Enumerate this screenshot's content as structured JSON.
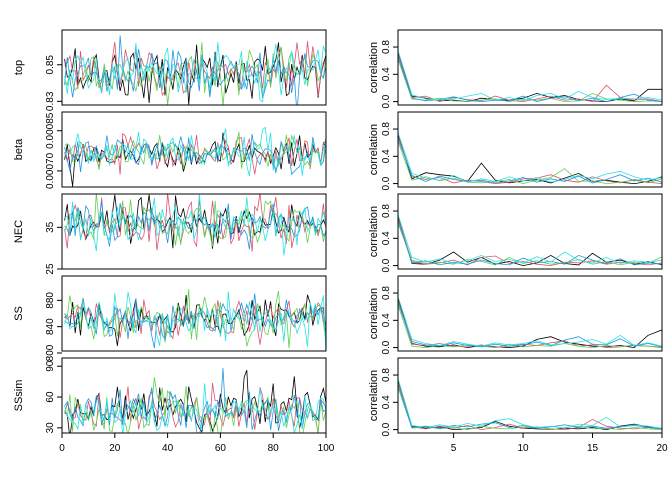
{
  "palette": [
    "#000000",
    "#DF536B",
    "#61D04F",
    "#2297E6",
    "#28E2E5"
  ],
  "chart_data": [
    {
      "type": "line",
      "panel": "trace",
      "ylabel": "top",
      "xlim": [
        0,
        100
      ],
      "ylim": [
        0.828,
        0.869
      ],
      "yticks": [
        0.83,
        0.85
      ],
      "ytick_labels": [
        "0.83",
        "0.85"
      ],
      "xticks": [
        0,
        20,
        40,
        60,
        80,
        100
      ],
      "xtick_labels": [
        "0",
        "20",
        "40",
        "60",
        "80",
        "100"
      ],
      "show_xticks": false,
      "n_series": 5,
      "x_range": [
        1,
        100
      ],
      "center": 0.846,
      "spread": 0.0075,
      "rho": 0.1
    },
    {
      "type": "line",
      "panel": "acf",
      "ylabel": "correlation",
      "xlim": [
        1,
        20
      ],
      "ylim": [
        -0.05,
        1.05
      ],
      "yticks": [
        0.0,
        0.4,
        0.8
      ],
      "ytick_labels": [
        "0.0",
        "0.4",
        "0.8"
      ],
      "xticks": [
        5,
        10,
        15,
        20
      ],
      "xtick_labels": [
        "5",
        "10",
        "15",
        "20"
      ],
      "show_xticks": false,
      "series": [
        {
          "values": [
            0.72,
            0.08,
            0.05,
            0.01,
            0.02,
            0.0,
            0.05,
            0.03,
            0.02,
            0.05,
            0.12,
            0.06,
            0.09,
            0.03,
            0.01,
            0.0,
            0.04,
            0.01,
            0.18,
            0.18
          ]
        },
        {
          "values": [
            0.7,
            0.06,
            0.08,
            0.0,
            0.06,
            0.03,
            0.01,
            0.08,
            0.02,
            0.0,
            0.04,
            0.08,
            0.02,
            0.04,
            0.0,
            0.24,
            0.06,
            0.02,
            0.04,
            0.0
          ]
        },
        {
          "values": [
            0.62,
            0.04,
            0.02,
            0.05,
            0.01,
            0.0,
            0.02,
            0.04,
            0.0,
            0.03,
            0.02,
            0.05,
            0.0,
            0.01,
            0.12,
            0.04,
            0.02,
            0.0,
            0.01,
            0.0
          ]
        },
        {
          "values": [
            0.66,
            0.05,
            0.01,
            0.03,
            0.07,
            0.02,
            0.0,
            0.02,
            0.01,
            0.08,
            0.0,
            0.05,
            0.07,
            0.01,
            0.05,
            0.0,
            0.06,
            0.11,
            0.02,
            0.0
          ]
        },
        {
          "values": [
            0.75,
            0.1,
            0.04,
            0.02,
            0.04,
            0.08,
            0.12,
            0.02,
            0.06,
            0.01,
            0.09,
            0.12,
            0.04,
            0.15,
            0.06,
            0.03,
            0.05,
            0.04,
            0.06,
            0.02
          ]
        }
      ]
    },
    {
      "type": "line",
      "panel": "trace",
      "ylabel": "beta",
      "xlim": [
        0,
        100
      ],
      "ylim": [
        0.00064,
        0.00092
      ],
      "yticks": [
        0.0007,
        0.00085
      ],
      "ytick_labels": [
        "0.00070",
        "0.00085"
      ],
      "xticks": [
        0,
        20,
        40,
        60,
        80,
        100
      ],
      "xtick_labels": [
        "0",
        "20",
        "40",
        "60",
        "80",
        "100"
      ],
      "show_xticks": false,
      "n_series": 5,
      "x_range": [
        1,
        100
      ],
      "center": 0.000768,
      "spread": 3.5e-05,
      "rho": 0.1
    },
    {
      "type": "line",
      "panel": "acf",
      "ylabel": "correlation",
      "xlim": [
        1,
        20
      ],
      "ylim": [
        -0.05,
        1.05
      ],
      "yticks": [
        0.0,
        0.4,
        0.8
      ],
      "ytick_labels": [
        "0.0",
        "0.4",
        "0.8"
      ],
      "xticks": [
        5,
        10,
        15,
        20
      ],
      "xtick_labels": [
        "5",
        "10",
        "15",
        "20"
      ],
      "show_xticks": false,
      "series": [
        {
          "values": [
            0.72,
            0.07,
            0.16,
            0.13,
            0.11,
            0.03,
            0.3,
            0.05,
            0.01,
            0.04,
            0.06,
            0.01,
            0.08,
            0.15,
            0.03,
            0.05,
            0.02,
            0.0,
            0.03,
            0.1
          ]
        },
        {
          "values": [
            0.7,
            0.1,
            0.06,
            0.09,
            0.01,
            0.05,
            0.03,
            0.0,
            0.02,
            0.07,
            0.08,
            0.13,
            0.05,
            0.02,
            0.1,
            0.04,
            0.01,
            0.06,
            0.02,
            0.0
          ]
        },
        {
          "values": [
            0.62,
            0.05,
            0.1,
            0.04,
            0.08,
            0.02,
            0.01,
            0.03,
            0.06,
            0.0,
            0.05,
            0.09,
            0.22,
            0.03,
            0.04,
            0.0,
            0.02,
            0.05,
            0.01,
            0.07
          ]
        },
        {
          "values": [
            0.66,
            0.12,
            0.03,
            0.11,
            0.06,
            0.03,
            0.05,
            0.01,
            0.04,
            0.09,
            0.02,
            0.07,
            0.03,
            0.11,
            0.01,
            0.06,
            0.13,
            0.04,
            0.08,
            0.02
          ]
        },
        {
          "values": [
            0.75,
            0.15,
            0.08,
            0.05,
            0.12,
            0.02,
            0.07,
            0.03,
            0.1,
            0.04,
            0.09,
            0.02,
            0.06,
            0.12,
            0.07,
            0.14,
            0.18,
            0.1,
            0.05,
            0.09
          ]
        }
      ]
    },
    {
      "type": "line",
      "panel": "trace",
      "ylabel": "NEC",
      "xlim": [
        0,
        100
      ],
      "ylim": [
        25,
        43
      ],
      "yticks": [
        25,
        35
      ],
      "ytick_labels": [
        "25",
        "35"
      ],
      "xticks": [
        0,
        20,
        40,
        60,
        80,
        100
      ],
      "xtick_labels": [
        "0",
        "20",
        "40",
        "60",
        "80",
        "100"
      ],
      "show_xticks": false,
      "n_series": 5,
      "x_range": [
        1,
        100
      ],
      "center": 35.8,
      "spread": 2.7,
      "rho": 0.1
    },
    {
      "type": "line",
      "panel": "acf",
      "ylabel": "correlation",
      "xlim": [
        1,
        20
      ],
      "ylim": [
        -0.05,
        1.05
      ],
      "yticks": [
        0.0,
        0.4,
        0.8
      ],
      "ytick_labels": [
        "0.0",
        "0.4",
        "0.8"
      ],
      "xticks": [
        5,
        10,
        15,
        20
      ],
      "xtick_labels": [
        "5",
        "10",
        "15",
        "20"
      ],
      "show_xticks": false,
      "series": [
        {
          "values": [
            0.72,
            0.03,
            0.02,
            0.08,
            0.2,
            0.05,
            0.12,
            0.02,
            0.06,
            0.0,
            0.04,
            0.15,
            0.03,
            0.01,
            0.18,
            0.05,
            0.08,
            0.02,
            0.06,
            0.01
          ]
        },
        {
          "values": [
            0.7,
            0.06,
            0.02,
            0.04,
            0.08,
            0.01,
            0.12,
            0.14,
            0.03,
            0.06,
            0.02,
            0.0,
            0.05,
            0.04,
            0.07,
            0.02,
            0.05,
            0.03,
            0.01,
            0.04
          ]
        },
        {
          "values": [
            0.62,
            0.08,
            0.03,
            0.05,
            0.02,
            0.09,
            0.06,
            0.01,
            0.12,
            0.03,
            0.07,
            0.02,
            0.04,
            0.09,
            0.02,
            0.06,
            0.01,
            0.05,
            0.03,
            0.13
          ]
        },
        {
          "values": [
            0.66,
            0.04,
            0.07,
            0.01,
            0.05,
            0.02,
            0.08,
            0.03,
            0.01,
            0.11,
            0.04,
            0.06,
            0.02,
            0.15,
            0.08,
            0.03,
            0.1,
            0.01,
            0.04,
            0.02
          ]
        },
        {
          "values": [
            0.75,
            0.12,
            0.05,
            0.1,
            0.03,
            0.07,
            0.15,
            0.06,
            0.09,
            0.04,
            0.13,
            0.05,
            0.2,
            0.08,
            0.04,
            0.12,
            0.03,
            0.07,
            0.05,
            0.08
          ]
        }
      ]
    },
    {
      "type": "line",
      "panel": "trace",
      "ylabel": "SS",
      "xlim": [
        0,
        100
      ],
      "ylim": [
        803,
        917
      ],
      "yticks": [
        800,
        840,
        880
      ],
      "ytick_labels": [
        "800",
        "840",
        "880"
      ],
      "xticks": [
        0,
        20,
        40,
        60,
        80,
        100
      ],
      "xtick_labels": [
        "0",
        "20",
        "40",
        "60",
        "80",
        "100"
      ],
      "show_xticks": false,
      "n_series": 5,
      "x_range": [
        1,
        100
      ],
      "center": 852,
      "spread": 16,
      "rho": 0.1
    },
    {
      "type": "line",
      "panel": "acf",
      "ylabel": "correlation",
      "xlim": [
        1,
        20
      ],
      "ylim": [
        -0.05,
        1.05
      ],
      "yticks": [
        0.0,
        0.4,
        0.8
      ],
      "ytick_labels": [
        "0.0",
        "0.4",
        "0.8"
      ],
      "xticks": [
        5,
        10,
        15,
        20
      ],
      "xtick_labels": [
        "5",
        "10",
        "15",
        "20"
      ],
      "show_xticks": false,
      "series": [
        {
          "values": [
            0.72,
            0.06,
            0.02,
            0.01,
            0.04,
            0.0,
            0.03,
            0.01,
            0.0,
            0.02,
            0.12,
            0.16,
            0.08,
            0.05,
            0.02,
            0.01,
            0.03,
            0.0,
            0.18,
            0.26
          ]
        },
        {
          "values": [
            0.7,
            0.05,
            0.03,
            0.06,
            0.02,
            0.01,
            0.04,
            0.0,
            0.02,
            0.05,
            0.03,
            0.07,
            0.1,
            0.02,
            0.04,
            0.0,
            0.01,
            0.03,
            0.02,
            0.0
          ]
        },
        {
          "values": [
            0.62,
            0.02,
            0.0,
            0.03,
            0.01,
            0.04,
            0.02,
            0.0,
            0.05,
            0.01,
            0.03,
            0.02,
            0.06,
            0.02,
            0.0,
            0.03,
            0.01,
            0.04,
            0.02,
            0.01
          ]
        },
        {
          "values": [
            0.66,
            0.09,
            0.04,
            0.02,
            0.07,
            0.03,
            0.01,
            0.05,
            0.02,
            0.04,
            0.08,
            0.03,
            0.11,
            0.16,
            0.05,
            0.04,
            0.13,
            0.02,
            0.06,
            0.01
          ]
        },
        {
          "values": [
            0.75,
            0.12,
            0.06,
            0.03,
            0.09,
            0.05,
            0.02,
            0.07,
            0.04,
            0.06,
            0.1,
            0.04,
            0.06,
            0.08,
            0.12,
            0.05,
            0.18,
            0.03,
            0.07,
            0.02
          ]
        }
      ]
    },
    {
      "type": "line",
      "panel": "trace",
      "ylabel": "SSsim",
      "xlim": [
        0,
        100
      ],
      "ylim": [
        25,
        98
      ],
      "yticks": [
        30,
        60,
        90
      ],
      "ytick_labels": [
        "30",
        "60",
        "90"
      ],
      "xticks": [
        0,
        20,
        40,
        60,
        80,
        100
      ],
      "xtick_labels": [
        "0",
        "20",
        "40",
        "60",
        "80",
        "100"
      ],
      "show_xticks": true,
      "n_series": 5,
      "x_range": [
        1,
        100
      ],
      "center": 48,
      "spread": 11,
      "rho": 0.15
    },
    {
      "type": "line",
      "panel": "acf",
      "ylabel": "correlation",
      "xlim": [
        1,
        20
      ],
      "ylim": [
        -0.05,
        1.05
      ],
      "yticks": [
        0.0,
        0.4,
        0.8
      ],
      "ytick_labels": [
        "0.0",
        "0.4",
        "0.8"
      ],
      "xticks": [
        5,
        10,
        15,
        20
      ],
      "xtick_labels": [
        "5",
        "10",
        "15",
        "20"
      ],
      "show_xticks": true,
      "series": [
        {
          "values": [
            0.72,
            0.05,
            0.02,
            0.04,
            0.0,
            0.01,
            0.03,
            0.12,
            0.05,
            0.02,
            0.01,
            0.0,
            0.02,
            0.01,
            0.03,
            0.0,
            0.05,
            0.08,
            0.04,
            0.0
          ]
        },
        {
          "values": [
            0.7,
            0.04,
            0.01,
            0.05,
            0.02,
            0.06,
            0.0,
            0.03,
            0.08,
            0.02,
            0.04,
            0.01,
            0.0,
            0.03,
            0.15,
            0.05,
            0.02,
            0.01,
            0.03,
            0.0
          ]
        },
        {
          "values": [
            0.62,
            0.02,
            0.04,
            0.01,
            0.03,
            0.0,
            0.05,
            0.02,
            0.01,
            0.04,
            0.02,
            0.0,
            0.03,
            0.05,
            0.01,
            0.02,
            0.0,
            0.03,
            0.01,
            0.0
          ]
        },
        {
          "values": [
            0.66,
            0.03,
            0.05,
            0.02,
            0.06,
            0.04,
            0.08,
            0.1,
            0.03,
            0.06,
            0.02,
            0.04,
            0.07,
            0.03,
            0.05,
            0.02,
            0.04,
            0.06,
            0.03,
            0.01
          ]
        },
        {
          "values": [
            0.75,
            0.06,
            0.03,
            0.07,
            0.04,
            0.09,
            0.05,
            0.13,
            0.16,
            0.07,
            0.03,
            0.05,
            0.02,
            0.08,
            0.06,
            0.18,
            0.04,
            0.07,
            0.05,
            0.02
          ]
        }
      ]
    }
  ]
}
